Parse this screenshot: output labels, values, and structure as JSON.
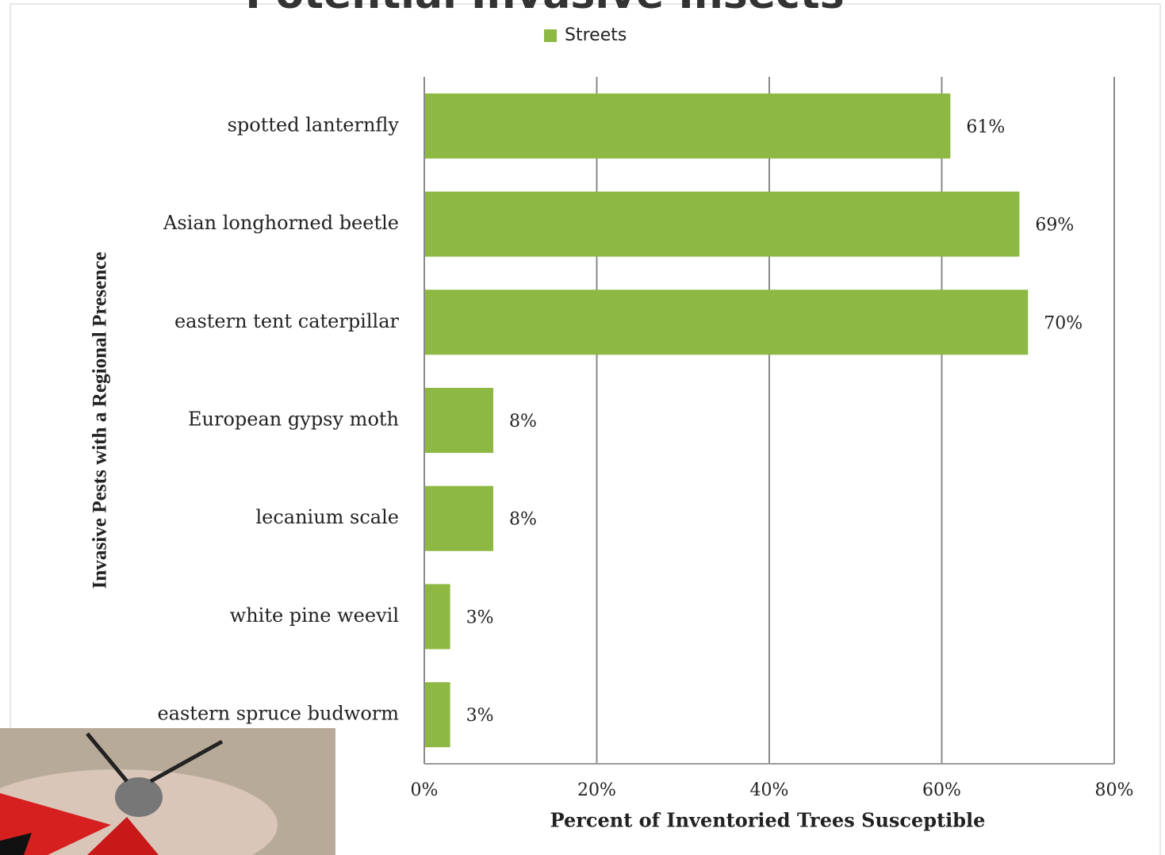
{
  "chart_data": {
    "type": "barh",
    "title": "Potential Invasive Insects",
    "categories": [
      "spotted lanternfly",
      "Asian longhorned beetle",
      "eastern tent caterpillar",
      "European gypsy moth",
      "lecanium scale",
      "white pine weevil",
      "eastern spruce budworm"
    ],
    "series": [
      {
        "name": "Streets",
        "color": "#8db843",
        "values": [
          61,
          69,
          70,
          8,
          8,
          3,
          3
        ],
        "value_labels": [
          "61%",
          "69%",
          "70%",
          "8%",
          "8%",
          "3%",
          "3%"
        ]
      }
    ],
    "xlim": [
      0,
      80
    ],
    "xticks": [
      {
        "value": 0,
        "label": "0%"
      },
      {
        "value": 20,
        "label": "20%"
      },
      {
        "value": 40,
        "label": "40%"
      },
      {
        "value": 60,
        "label": "60%"
      },
      {
        "value": 80,
        "label": "80%"
      }
    ],
    "xlabel": "Percent of Inventoried Trees Susceptible",
    "ylabel": "Invasive Pests with a Regional Presence",
    "grid": true,
    "legend": "top"
  }
}
